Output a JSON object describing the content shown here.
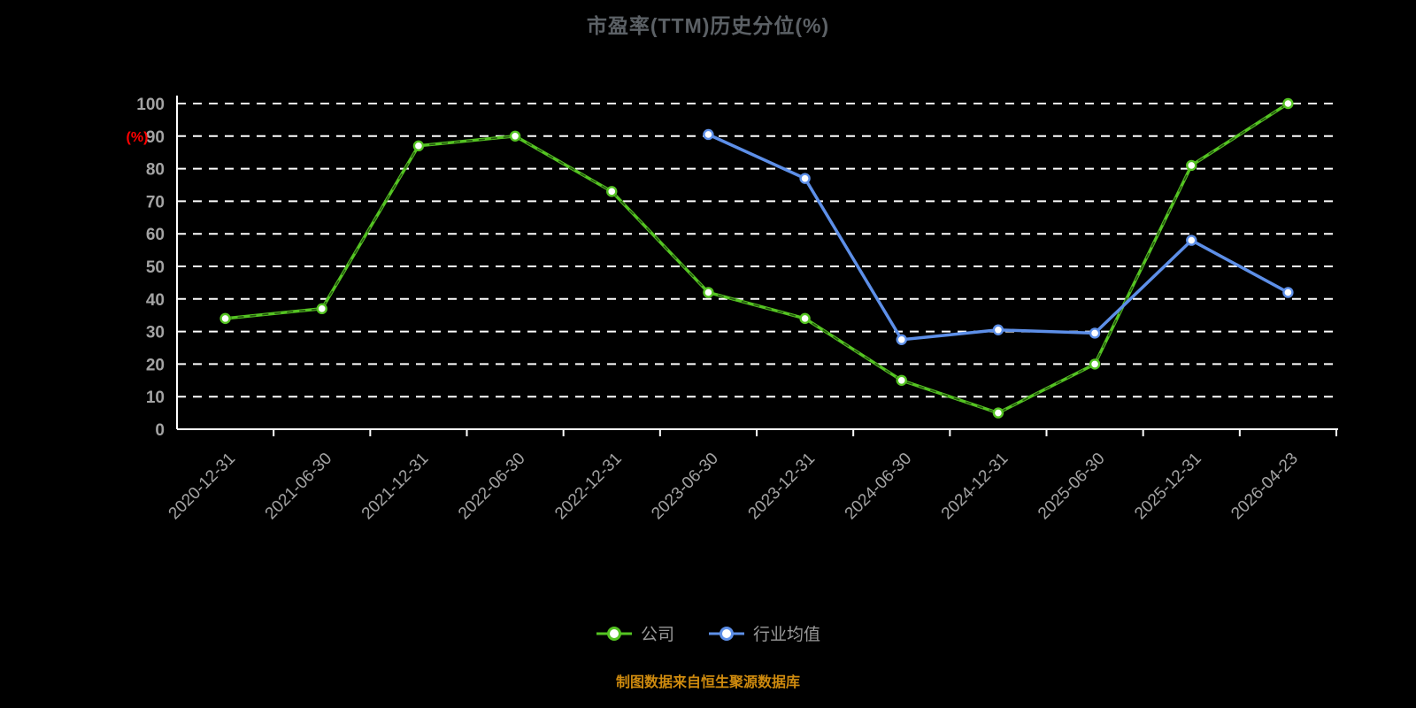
{
  "title": "市盈率(TTM)历史分位(%)",
  "footer_note": "制图数据来自恒生聚源数据库",
  "colors": {
    "background": "#000000",
    "title": "#5c6166",
    "axis": "#ffffff",
    "tick_label": "#a3a3a3",
    "ylabel": "#ff0000",
    "legend_text": "#999999",
    "footer": "#ce8a0e",
    "company_green": "#54c322",
    "industry_blue": "#5d8fe8"
  },
  "chart_data": {
    "type": "line",
    "title": "市盈率(TTM)历史分位(%)",
    "xlabel": "",
    "ylabel": "(%)",
    "ylim": [
      0,
      100
    ],
    "ytick_interval": 10,
    "grid": true,
    "grid_style": "dashed",
    "legend_position": "bottom",
    "categories": [
      "2020-12-31",
      "2021-06-30",
      "2021-12-31",
      "2022-06-30",
      "2022-12-31",
      "2023-06-30",
      "2023-12-31",
      "2024-06-30",
      "2024-12-31",
      "2025-06-30",
      "2025-12-31",
      "2026-04-23"
    ],
    "series": [
      {
        "name": "公司",
        "color": "#54c322",
        "marker": "circle",
        "dashed_overlay": true,
        "values": [
          34,
          37,
          87,
          90,
          73,
          42,
          34,
          15,
          5,
          20,
          81,
          100
        ]
      },
      {
        "name": "行业均值",
        "color": "#5d8fe8",
        "marker": "circle",
        "dashed_overlay": false,
        "values": [
          null,
          null,
          null,
          null,
          null,
          90.5,
          77,
          27.5,
          30.5,
          29.5,
          58,
          42
        ]
      }
    ]
  }
}
